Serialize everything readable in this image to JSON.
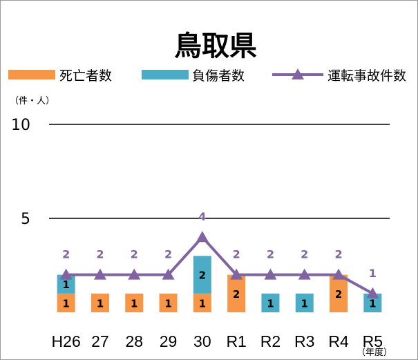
{
  "chart_data": {
    "type": "bar",
    "title": "鳥取県",
    "y_unit_label": "（件・人）",
    "x_unit_label": "（年度）",
    "categories": [
      "H26",
      "27",
      "28",
      "29",
      "30",
      "R1",
      "R2",
      "R3",
      "R4",
      "R5"
    ],
    "ylim": [
      0,
      10
    ],
    "yticks": [
      5,
      10
    ],
    "grid": true,
    "legend_position": "top",
    "series": [
      {
        "name": "死亡者数",
        "kind": "stacked-bar",
        "color": "#f79646",
        "values": [
          1,
          1,
          1,
          1,
          1,
          2,
          0,
          0,
          2,
          0
        ],
        "labels": [
          "1",
          "1",
          "1",
          "1",
          "1",
          "2",
          "",
          "",
          "2",
          ""
        ]
      },
      {
        "name": "負傷者数",
        "kind": "stacked-bar",
        "color": "#4bacc6",
        "values": [
          1,
          0,
          0,
          0,
          2,
          0,
          1,
          1,
          0,
          1
        ],
        "labels": [
          "1",
          "",
          "",
          "",
          "2",
          "",
          "1",
          "1",
          "",
          "1"
        ]
      },
      {
        "name": "運転事故件数",
        "kind": "line",
        "marker": "triangle",
        "color": "#8064a2",
        "values": [
          2,
          2,
          2,
          2,
          4,
          2,
          2,
          2,
          2,
          1
        ],
        "labels": [
          "2",
          "2",
          "2",
          "2",
          "4",
          "2",
          "2",
          "2",
          "2",
          "1"
        ]
      }
    ]
  }
}
